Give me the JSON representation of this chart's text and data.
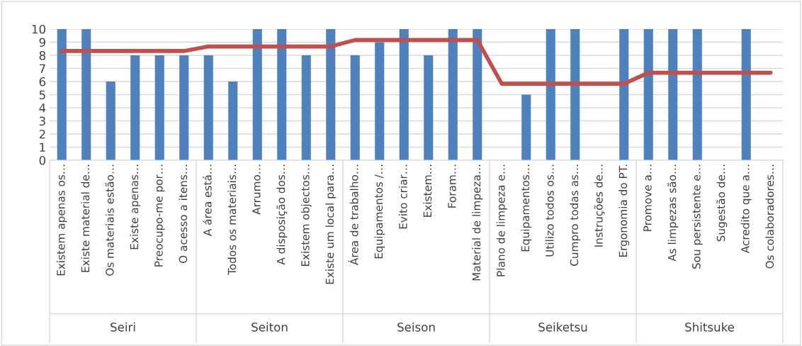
{
  "chart_data": {
    "type": "bar",
    "categories": [
      "Existem apenas os…",
      "Existe material de…",
      "Os materiais estão…",
      "Existe apenas…",
      "Preocupo-me por…",
      "O acesso a itens…",
      "A área está…",
      "Todos os materiais…",
      "Arrumo…",
      "A disposição dos…",
      "Existem objectos…",
      "Existe um local para…",
      "Área de trabalho…",
      "Equipamentos /…",
      "Evito criar…",
      "Existem…",
      "Foram…",
      "Material de limpeza…",
      "Plano de limpeza e…",
      "Equipamentos…",
      "Utilizo todos os…",
      "Cumpro todas as…",
      "Instruções de…",
      "Ergonomia do PT.",
      "Promove a…",
      "As limpezas são…",
      "Sou persistente e…",
      "Sugestão de…",
      "Acredito que a…",
      "Os colaboradores…"
    ],
    "series": [
      {
        "color": "#4f81bd",
        "values": [
          10,
          10,
          6,
          8,
          8,
          8,
          8,
          6,
          10,
          10,
          8,
          10,
          8,
          9,
          10,
          8,
          10,
          10,
          0,
          5,
          10,
          10,
          0,
          10,
          10,
          10,
          10,
          0,
          10,
          0
        ]
      },
      {
        "type": "line",
        "color": "#c0504d",
        "values": [
          8.33,
          8.33,
          8.33,
          8.33,
          8.33,
          8.33,
          8.67,
          8.67,
          8.67,
          8.67,
          8.67,
          8.67,
          9.17,
          9.17,
          9.17,
          9.17,
          9.17,
          9.17,
          5.83,
          5.83,
          5.83,
          5.83,
          5.83,
          5.83,
          6.67,
          6.67,
          6.67,
          6.67,
          6.67,
          6.67
        ]
      }
    ],
    "annotations": [
      "Seiri",
      "Seiton",
      "Seison",
      "Seiketsu",
      "Shitsuke"
    ],
    "ylim": [
      0,
      10
    ],
    "yticks": [
      0,
      1,
      2,
      3,
      4,
      5,
      6,
      7,
      8,
      9,
      10
    ],
    "grid": "y",
    "legend": false,
    "marker": "none",
    "line_style": "solid"
  }
}
